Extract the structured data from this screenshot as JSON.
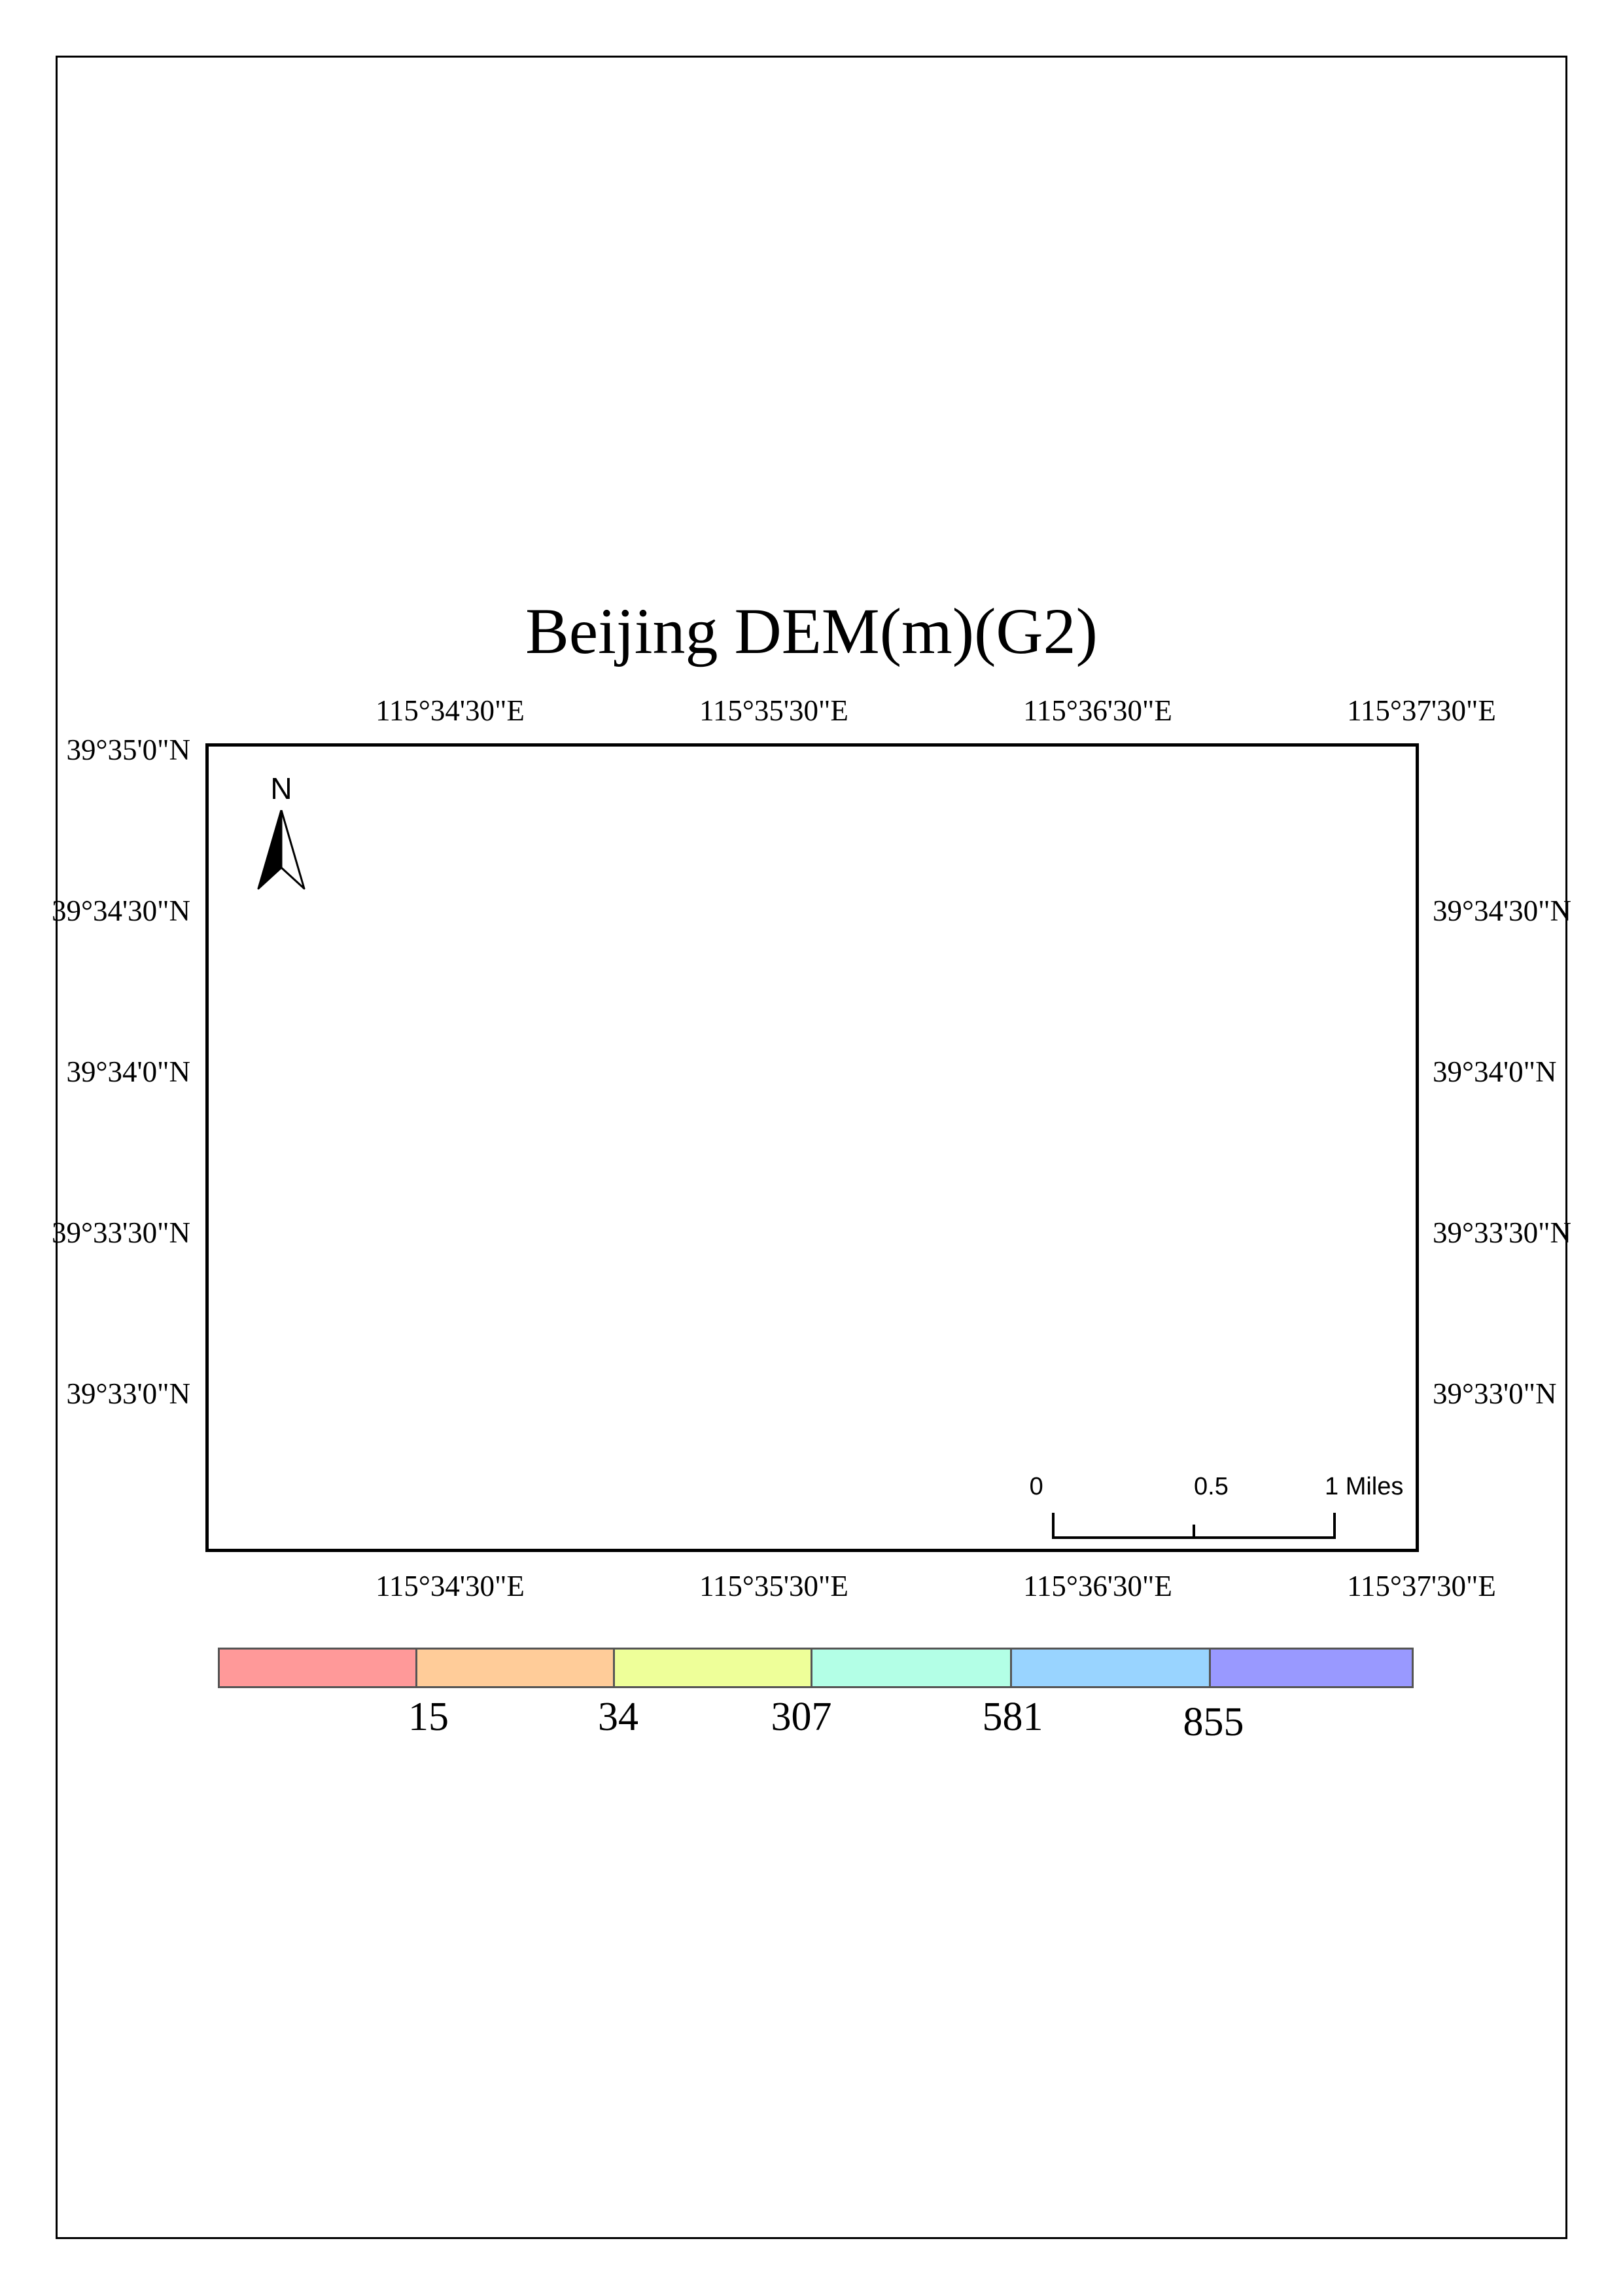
{
  "map": {
    "title": "Beijing DEM(m)(G2)",
    "north_arrow": {
      "label": "N",
      "icon": "north-arrow-icon"
    },
    "longitude_labels": [
      "115°34'30\"E",
      "115°35'30\"E",
      "115°36'30\"E",
      "115°37'30\"E"
    ],
    "latitude_labels": {
      "left": [
        "39°35'0\"N",
        "39°34'30\"N",
        "39°34'0\"N",
        "39°33'30\"N",
        "39°33'0\"N"
      ],
      "right": [
        "39°34'30\"N",
        "39°34'0\"N",
        "39°33'30\"N",
        "39°33'0\"N"
      ]
    },
    "scale_bar": {
      "labels": [
        "0",
        "0.5",
        "1 Miles"
      ]
    },
    "legend": {
      "colors": [
        "#ff9999",
        "#ffcc99",
        "#eeff99",
        "#b3ffe6",
        "#99d4ff",
        "#9999ff"
      ],
      "break_labels": [
        "15",
        "34",
        "307",
        "581",
        "855"
      ]
    }
  }
}
